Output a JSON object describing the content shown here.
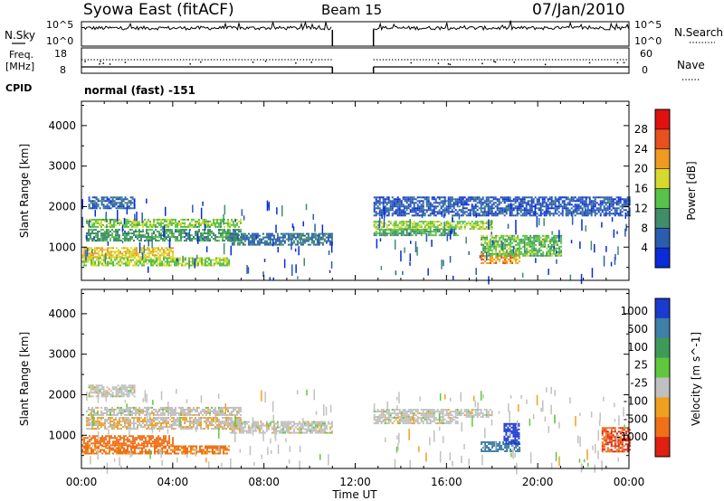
{
  "header": {
    "station": "Syowa East (fitACF)",
    "beam": "Beam 15",
    "date": "07/Jan/2010"
  },
  "left_labels": {
    "nsky": "N.Sky",
    "freq_line1": "Freq.",
    "freq_line2": "[MHz]",
    "cpid": "CPID"
  },
  "right_labels": {
    "nsearch": "N.Search",
    "nave": "Nave"
  },
  "noise_panel": {
    "left_ticks": [
      "10^5",
      "10^0"
    ],
    "right_ticks": [
      "10^5",
      "10^0"
    ]
  },
  "freq_panel": {
    "left_ticks": [
      "18",
      "8"
    ],
    "right_ticks": [
      "60",
      "0"
    ]
  },
  "cpid_text": "normal (fast) -151",
  "axes": {
    "ylabel": "Slant Range [km]",
    "xlabel": "Time UT",
    "y_ticks": [
      "1000",
      "2000",
      "3000",
      "4000"
    ],
    "x_ticks": [
      "00:00",
      "04:00",
      "08:00",
      "12:00",
      "16:00",
      "20:00",
      "00:00"
    ]
  },
  "power_colorbar": {
    "label": "Power [dB]",
    "ticks": [
      "4",
      "8",
      "12",
      "16",
      "20",
      "24",
      "28"
    ],
    "colors": [
      "#0a2bd8",
      "#2a5db0",
      "#3f8d6a",
      "#58c24a",
      "#d8d92e",
      "#f09a22",
      "#e8501e",
      "#e01010"
    ]
  },
  "velocity_colorbar": {
    "label": "Velocity [m s^-1]",
    "ticks": [
      "1000",
      "500",
      "100",
      "25",
      "-25",
      "-100",
      "-500",
      "-1000"
    ],
    "colors": [
      "#1a3ad0",
      "#3f7fa8",
      "#3f9a5a",
      "#5fc83c",
      "#c0c0c0",
      "#f0a020",
      "#f07018",
      "#e02010"
    ]
  },
  "chart_data": [
    {
      "type": "heatmap",
      "name": "power",
      "xlabel": "Time UT",
      "ylabel": "Slant Range [km]",
      "xlim": [
        0,
        24
      ],
      "ylim": [
        180,
        4600
      ],
      "zlim": [
        0,
        30
      ],
      "data_gap_hours": [
        11.0,
        12.8
      ],
      "echo_bands": [
        {
          "t0": 0.3,
          "t1": 2.3,
          "r0": 1950,
          "r1": 2250,
          "level": 6
        },
        {
          "t0": 0.2,
          "t1": 7.0,
          "r0": 1480,
          "r1": 1700,
          "level": 14
        },
        {
          "t0": 0.2,
          "t1": 7.0,
          "r0": 1150,
          "r1": 1450,
          "level": 10
        },
        {
          "t0": 0.0,
          "t1": 4.0,
          "r0": 750,
          "r1": 1000,
          "level": 18
        },
        {
          "t0": 0.0,
          "t1": 6.5,
          "r0": 550,
          "r1": 750,
          "level": 15
        },
        {
          "t0": 6.5,
          "t1": 11.0,
          "r0": 1050,
          "r1": 1350,
          "level": 7
        },
        {
          "t0": 12.8,
          "t1": 18.0,
          "r0": 1450,
          "r1": 1650,
          "level": 15
        },
        {
          "t0": 12.8,
          "t1": 16.5,
          "r0": 1300,
          "r1": 1450,
          "level": 11
        },
        {
          "t0": 17.5,
          "t1": 19.2,
          "r0": 600,
          "r1": 850,
          "level": 21
        },
        {
          "t0": 17.5,
          "t1": 21.0,
          "r0": 800,
          "r1": 1300,
          "level": 13
        },
        {
          "t0": 12.8,
          "t1": 24.0,
          "r0": 1800,
          "r1": 2250,
          "level": 5
        }
      ]
    },
    {
      "type": "heatmap",
      "name": "velocity",
      "xlabel": "Time UT",
      "ylabel": "Slant Range [km]",
      "xlim": [
        0,
        24
      ],
      "ylim": [
        180,
        4600
      ],
      "zlim": [
        -1000,
        1000
      ],
      "data_gap_hours": [
        11.0,
        12.8
      ],
      "echo_bands": [
        {
          "t0": 0.3,
          "t1": 2.3,
          "r0": 1950,
          "r1": 2250,
          "level": 0
        },
        {
          "t0": 0.2,
          "t1": 7.0,
          "r0": 1480,
          "r1": 1700,
          "level": 0
        },
        {
          "t0": 0.2,
          "t1": 7.0,
          "r0": 1150,
          "r1": 1450,
          "level": -20
        },
        {
          "t0": 0.0,
          "t1": 4.0,
          "r0": 750,
          "r1": 1000,
          "level": -150
        },
        {
          "t0": 0.0,
          "t1": 6.5,
          "r0": 550,
          "r1": 750,
          "level": -120
        },
        {
          "t0": 6.5,
          "t1": 11.0,
          "r0": 1050,
          "r1": 1350,
          "level": 0
        },
        {
          "t0": 12.8,
          "t1": 18.0,
          "r0": 1450,
          "r1": 1650,
          "level": 0
        },
        {
          "t0": 12.8,
          "t1": 16.5,
          "r0": 1300,
          "r1": 1450,
          "level": 0
        },
        {
          "t0": 17.5,
          "t1": 19.2,
          "r0": 600,
          "r1": 850,
          "level": 150
        },
        {
          "t0": 18.5,
          "t1": 19.2,
          "r0": 800,
          "r1": 1300,
          "level": 600
        },
        {
          "t0": 22.8,
          "t1": 24.0,
          "r0": 600,
          "r1": 1200,
          "level": -500
        }
      ]
    }
  ]
}
